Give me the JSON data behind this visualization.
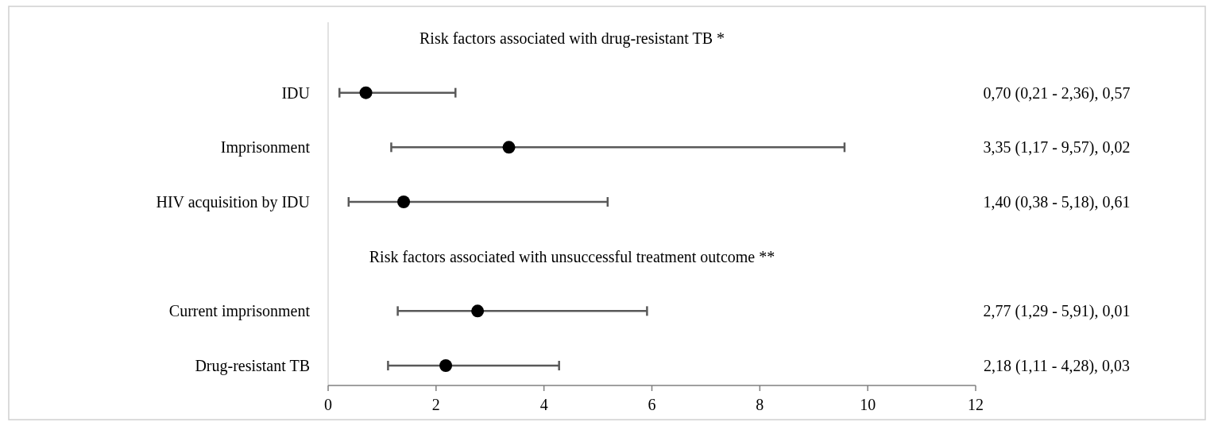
{
  "chart_data": {
    "type": "scatter",
    "orientation": "horizontal",
    "categories": [
      null,
      "IDU",
      "Imprisonment",
      "HIV acquisition by IDU",
      null,
      "Current imprisonment",
      "Drug-resistant TB"
    ],
    "values": [
      null,
      0.7,
      3.35,
      1.4,
      null,
      2.77,
      2.18
    ],
    "errors": [
      null,
      [
        0.21,
        2.36
      ],
      [
        1.17,
        9.57
      ],
      [
        0.38,
        5.18
      ],
      null,
      [
        1.29,
        5.91
      ],
      [
        1.11,
        4.28
      ]
    ],
    "value_labels": [
      null,
      "0,70 (0,21 - 2,36), 0,57",
      "3,35 (1,17 - 9,57), 0,02",
      "1,40 (0,38 - 5,18), 0,61",
      null,
      "2,77 (1,29 - 5,91), 0,01",
      "2,18 (1,11 - 4,28), 0,03"
    ],
    "annotations": [
      "Risk factors associated with drug-resistant TB *",
      "Risk factors associated with unsuccessful treatment outcome **"
    ],
    "color": "#000000",
    "marker": "circle",
    "xlim": [
      0,
      12
    ],
    "xticks": [
      0,
      2,
      4,
      6,
      8,
      10,
      12
    ]
  }
}
